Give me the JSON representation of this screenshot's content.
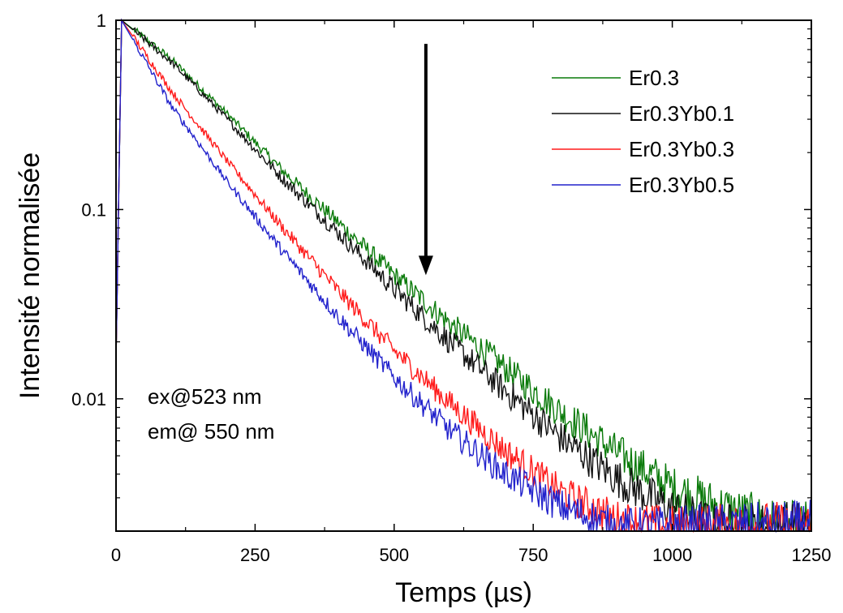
{
  "chart_data": {
    "type": "line",
    "title": "",
    "xlabel": "Temps (µs)",
    "ylabel": "Intensité normalisée",
    "xlim": [
      0,
      1250
    ],
    "ylim": [
      0.002,
      1
    ],
    "y_scale": "log",
    "x_ticks": [
      0,
      250,
      500,
      750,
      1000,
      1250
    ],
    "x_tick_labels": [
      "0",
      "250",
      "500",
      "750",
      "1000",
      "1250"
    ],
    "y_ticks": [
      0.01,
      0.1,
      1
    ],
    "y_tick_labels": [
      "0.01",
      "0.1",
      "1"
    ],
    "grid": false,
    "legend_position": "top-right",
    "series": [
      {
        "name": "Er0.3",
        "color": "#0a7a0a",
        "points": [
          [
            0,
            0.016
          ],
          [
            10,
            1.0
          ],
          [
            100,
            0.62
          ],
          [
            200,
            0.32
          ],
          [
            300,
            0.16
          ],
          [
            400,
            0.085
          ],
          [
            500,
            0.045
          ],
          [
            600,
            0.025
          ],
          [
            700,
            0.0145
          ],
          [
            800,
            0.0085
          ],
          [
            900,
            0.0052
          ],
          [
            1000,
            0.0034
          ],
          [
            1100,
            0.0026
          ],
          [
            1200,
            0.0021
          ]
        ]
      },
      {
        "name": "Er0.3Yb0.1",
        "color": "#111111",
        "points": [
          [
            0,
            0.016
          ],
          [
            10,
            1.0
          ],
          [
            100,
            0.6
          ],
          [
            200,
            0.3
          ],
          [
            300,
            0.145
          ],
          [
            400,
            0.075
          ],
          [
            500,
            0.038
          ],
          [
            600,
            0.02
          ],
          [
            700,
            0.011
          ],
          [
            800,
            0.0062
          ],
          [
            900,
            0.0038
          ],
          [
            1000,
            0.0026
          ],
          [
            1080,
            0.0021
          ]
        ]
      },
      {
        "name": "Er0.3Yb0.3",
        "color": "#ff1a1a",
        "points": [
          [
            0,
            0.016
          ],
          [
            10,
            1.0
          ],
          [
            100,
            0.42
          ],
          [
            200,
            0.18
          ],
          [
            300,
            0.08
          ],
          [
            400,
            0.037
          ],
          [
            500,
            0.018
          ],
          [
            600,
            0.0095
          ],
          [
            700,
            0.0053
          ],
          [
            800,
            0.0032
          ],
          [
            900,
            0.0023
          ],
          [
            1000,
            0.0021
          ]
        ]
      },
      {
        "name": "Er0.3Yb0.5",
        "color": "#2222cc",
        "points": [
          [
            0,
            0.016
          ],
          [
            10,
            1.0
          ],
          [
            100,
            0.35
          ],
          [
            200,
            0.14
          ],
          [
            300,
            0.06
          ],
          [
            400,
            0.027
          ],
          [
            500,
            0.013
          ],
          [
            600,
            0.0068
          ],
          [
            700,
            0.004
          ],
          [
            800,
            0.0027
          ],
          [
            900,
            0.0021
          ]
        ]
      }
    ],
    "annotations": [
      "ex@523 nm",
      "em@ 550 nm"
    ],
    "arrow": {
      "x": 557,
      "y_from": 0.75,
      "y_to": 0.045,
      "direction": "down"
    }
  }
}
